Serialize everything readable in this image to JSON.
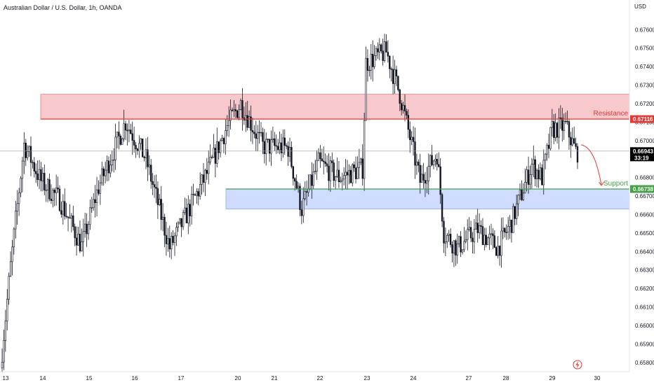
{
  "header": {
    "title": "Australian Dollar / U.S. Dollar, 1h, OANDA"
  },
  "colors": {
    "up": "#131722",
    "down": "#131722",
    "resistance": "#e53935",
    "support": "#43a047",
    "resistance_zone": "#f8c9cc",
    "support_zone": "#cfdcff",
    "current": "#000000"
  },
  "chart_data": {
    "type": "candlestick",
    "currency": "USD",
    "ylim": [
      0.6575,
      0.6776
    ],
    "y_ticks": [
      "0.65800",
      "0.65900",
      "0.66000",
      "0.66100",
      "0.66200",
      "0.66300",
      "0.66400",
      "0.66500",
      "0.66600",
      "0.66700",
      "0.66800",
      "0.66900",
      "0.67000",
      "0.67100",
      "0.67200",
      "0.67300",
      "0.67400",
      "0.67500",
      "0.67600"
    ],
    "x_ticks": [
      "13",
      "14",
      "15",
      "16",
      "17",
      "20",
      "21",
      "22",
      "23",
      "24",
      "27",
      "28",
      "29",
      "30"
    ],
    "resistance_label": "Resistance",
    "resistance_level": "0.67116",
    "resistance_zone": [
      0.67116,
      0.6725
    ],
    "support_label": "Support",
    "support_level": "0.66738",
    "support_zone": [
      0.6663,
      0.66738
    ],
    "current_price": "0.66943",
    "countdown": "33:19",
    "trend_anchors": [
      {
        "t": 0,
        "p": 0.6577
      },
      {
        "t": 6,
        "p": 0.6632
      },
      {
        "t": 14,
        "p": 0.6698
      },
      {
        "t": 24,
        "p": 0.6678
      },
      {
        "t": 35,
        "p": 0.6668
      },
      {
        "t": 48,
        "p": 0.6643
      },
      {
        "t": 58,
        "p": 0.6675
      },
      {
        "t": 74,
        "p": 0.671
      },
      {
        "t": 86,
        "p": 0.669
      },
      {
        "t": 100,
        "p": 0.6642
      },
      {
        "t": 110,
        "p": 0.666
      },
      {
        "t": 123,
        "p": 0.6684
      },
      {
        "t": 134,
        "p": 0.6708
      },
      {
        "t": 142,
        "p": 0.672
      },
      {
        "t": 155,
        "p": 0.6697
      },
      {
        "t": 170,
        "p": 0.6696
      },
      {
        "t": 178,
        "p": 0.6663
      },
      {
        "t": 188,
        "p": 0.6688
      },
      {
        "t": 200,
        "p": 0.668
      },
      {
        "t": 214,
        "p": 0.6685
      },
      {
        "t": 216,
        "p": 0.6742
      },
      {
        "t": 228,
        "p": 0.6748
      },
      {
        "t": 236,
        "p": 0.6725
      },
      {
        "t": 248,
        "p": 0.6678
      },
      {
        "t": 258,
        "p": 0.6693
      },
      {
        "t": 262,
        "p": 0.665
      },
      {
        "t": 270,
        "p": 0.6642
      },
      {
        "t": 282,
        "p": 0.6652
      },
      {
        "t": 294,
        "p": 0.6642
      },
      {
        "t": 302,
        "p": 0.6656
      },
      {
        "t": 314,
        "p": 0.6687
      },
      {
        "t": 320,
        "p": 0.668
      },
      {
        "t": 326,
        "p": 0.6706
      },
      {
        "t": 334,
        "p": 0.6708
      },
      {
        "t": 340,
        "p": 0.6694
      }
    ]
  }
}
